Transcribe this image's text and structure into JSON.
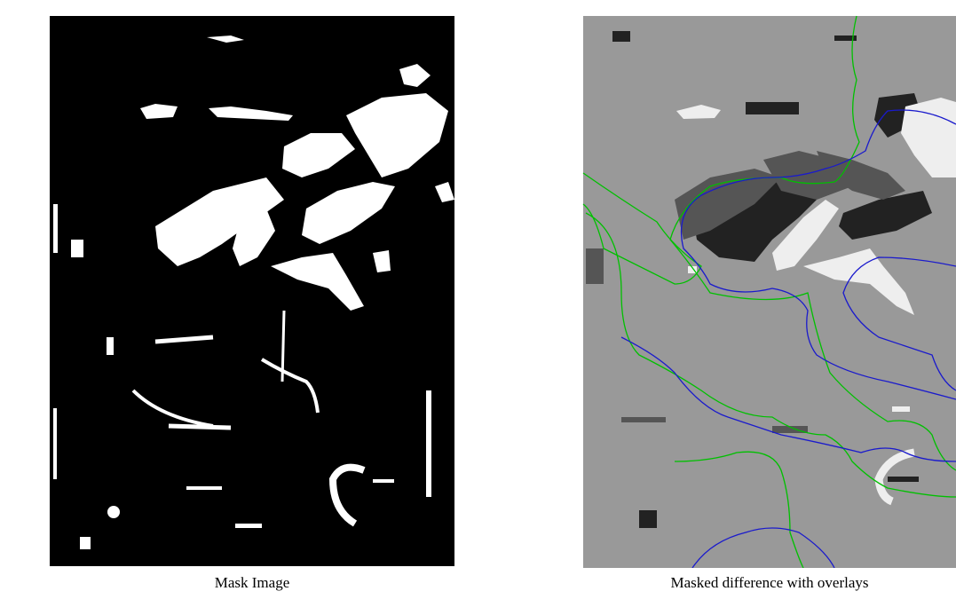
{
  "panels": [
    {
      "caption": "Mask Image"
    },
    {
      "caption": "Masked difference with overlays"
    }
  ]
}
